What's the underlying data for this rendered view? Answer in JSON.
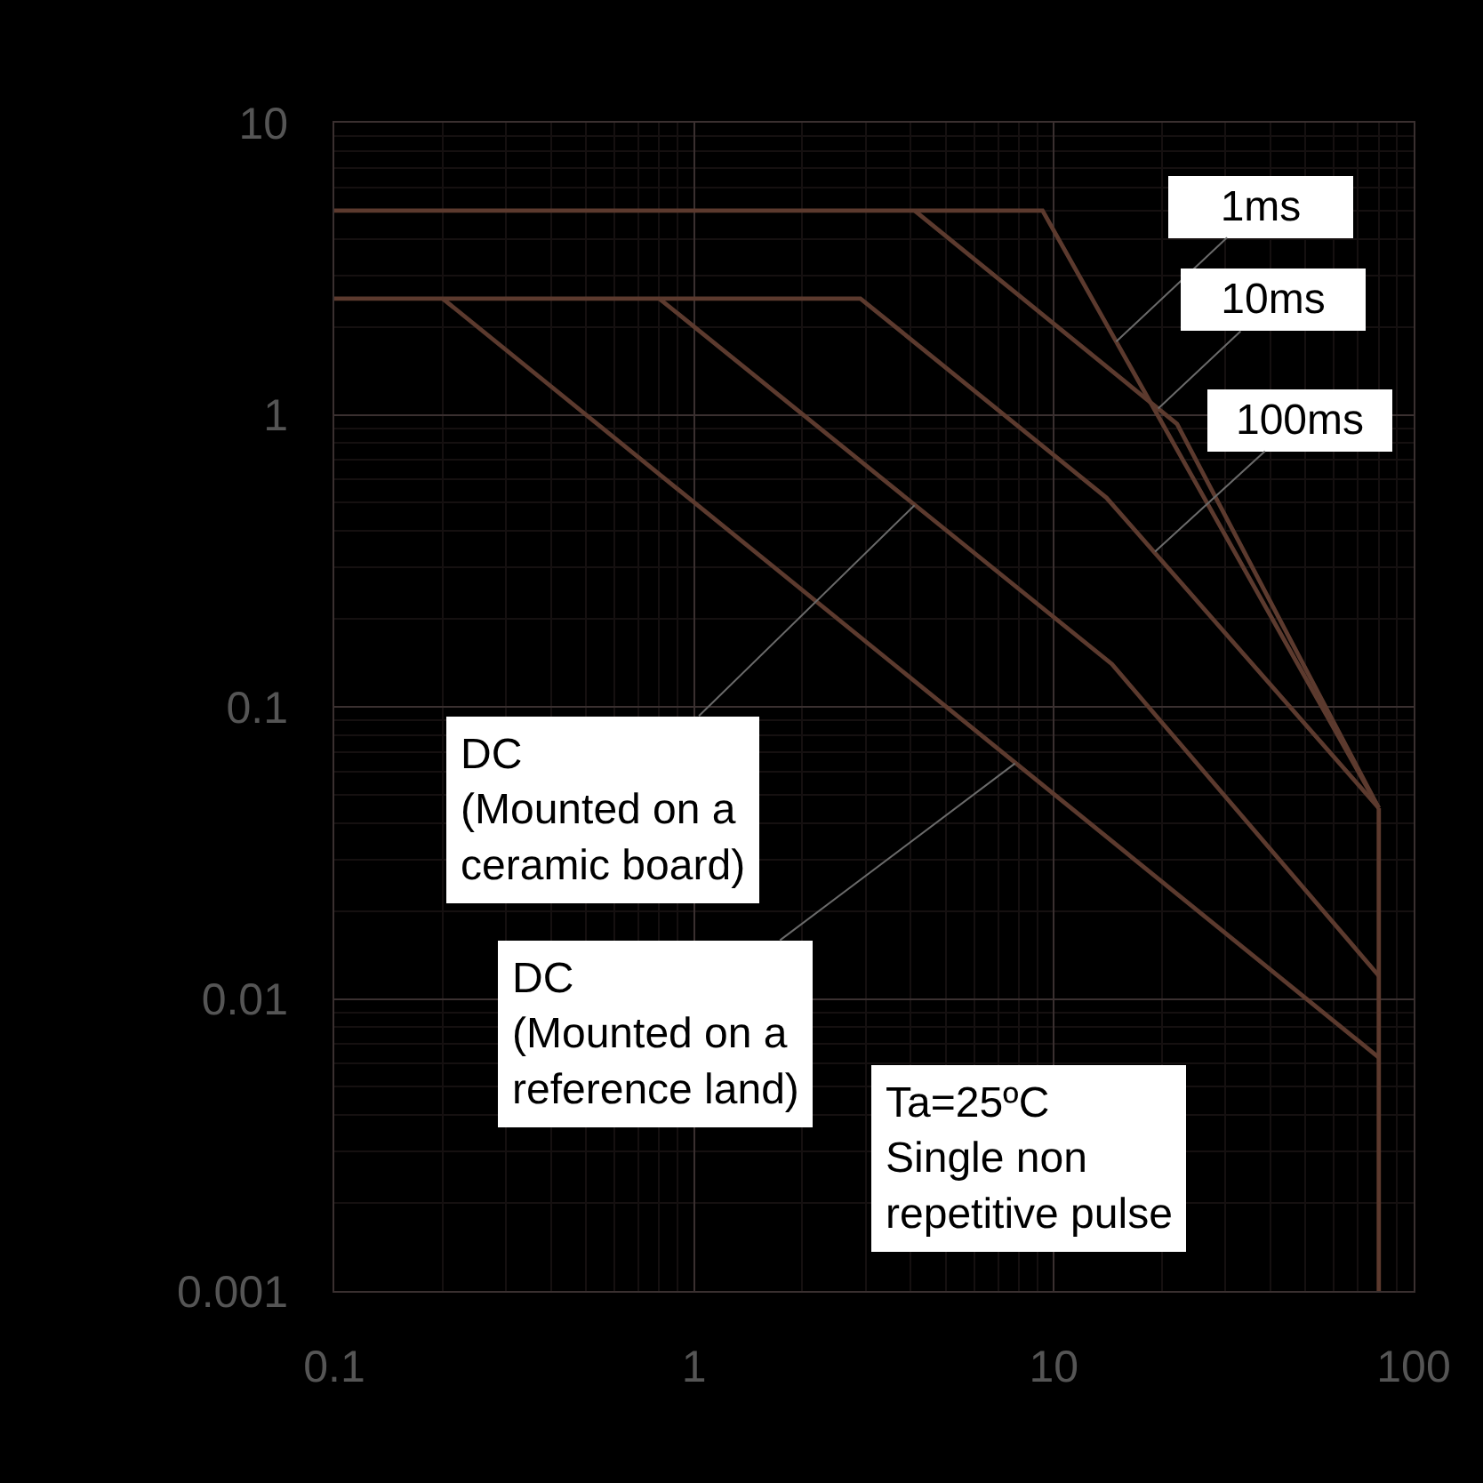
{
  "chart_data": {
    "type": "line",
    "log": "xy",
    "grid": true,
    "xlim": [
      0.1,
      100
    ],
    "ylim": [
      0.001,
      10
    ],
    "xticks": [
      0.1,
      1,
      10,
      100
    ],
    "yticks": [
      0.001,
      0.01,
      0.1,
      1,
      10
    ],
    "series": [
      {
        "color": "#5c3a2e",
        "x": [
          0.1,
          9.3,
          80
        ],
        "values": [
          5,
          5,
          0.045
        ]
      },
      {
        "color": "#5c3a2e",
        "x": [
          4.1,
          22,
          80
        ],
        "values": [
          5,
          0.93,
          0.045
        ]
      },
      {
        "color": "#5c3a2e",
        "x": [
          0.1,
          2.9,
          14,
          80
        ],
        "values": [
          2.5,
          2.5,
          0.52,
          0.045
        ]
      },
      {
        "color": "#5c3a2e",
        "x": [
          0.8,
          14.5,
          80
        ],
        "values": [
          2.5,
          0.14,
          0.012
        ]
      },
      {
        "color": "#5c3a2e",
        "x": [
          0.2,
          80
        ],
        "values": [
          2.5,
          0.0063
        ]
      },
      {
        "color": "#5c3a2e",
        "x": [
          80,
          80
        ],
        "values": [
          0.045,
          0.001
        ]
      }
    ],
    "annotations": [
      {
        "text": "1ms",
        "x": 14.9,
        "y": 1.78
      },
      {
        "text": "10ms",
        "x": 19.5,
        "y": 1.05
      },
      {
        "text": "100ms",
        "x": 19.1,
        "y": 0.34
      },
      {
        "text": "DC\n(Mounted on a\nceramic board)",
        "x": 4.1,
        "y": 0.49
      },
      {
        "text": "DC\n(Mounted on a\nreference land)",
        "x": 7.8,
        "y": 0.064
      },
      "Ta=25ºC\nSingle non\nrepetitive pulse"
    ]
  }
}
